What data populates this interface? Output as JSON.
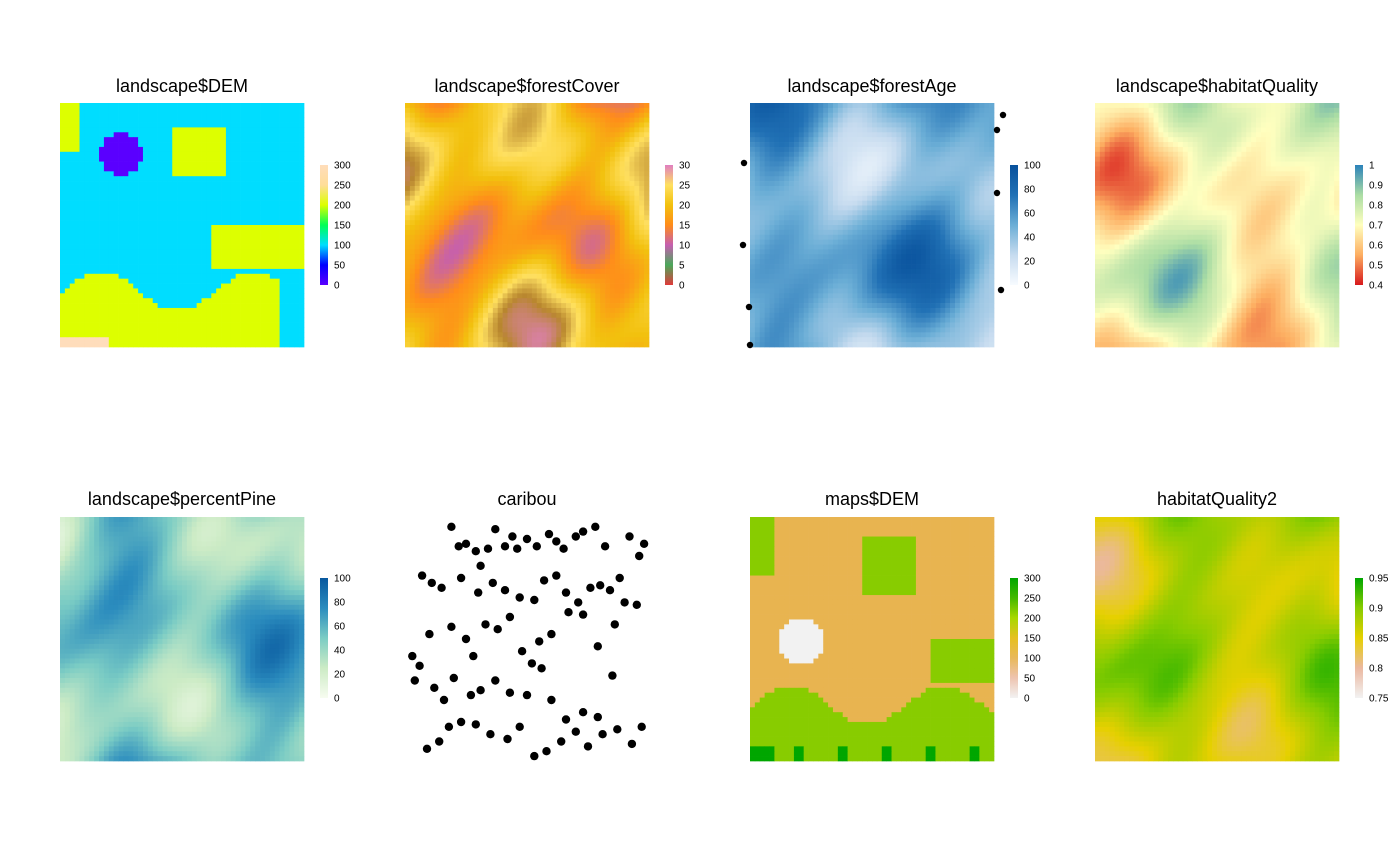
{
  "chart_data": [
    {
      "type": "heatmap",
      "title": "landscape$DEM",
      "legend": {
        "ticks": [
          0,
          50,
          100,
          150,
          200,
          250,
          300
        ],
        "colors": [
          "#5a00ff",
          "#0000ff",
          "#00ddff",
          "#00ff55",
          "#ddff00",
          "#ffdd99",
          "#ffddbb"
        ]
      },
      "palette_kind": "dem"
    },
    {
      "type": "heatmap",
      "title": "landscape$forestCover",
      "legend": {
        "ticks": [
          0,
          5,
          10,
          15,
          20,
          25,
          30
        ],
        "colors": [
          "#e03a3a",
          "#4aa85a",
          "#c55fb0",
          "#ff8c1a",
          "#f2c10e",
          "#ffe060",
          "#e07fc0"
        ]
      },
      "palette_kind": "forestcover"
    },
    {
      "type": "heatmap",
      "title": "landscape$forestAge",
      "legend": {
        "ticks": [
          0,
          20,
          40,
          60,
          80,
          100
        ],
        "colors": [
          "#f7fbff",
          "#c6dbef",
          "#6baed6",
          "#2171b5",
          "#08519c"
        ]
      },
      "palette_kind": "blues"
    },
    {
      "type": "heatmap",
      "title": "landscape$habitatQuality",
      "legend": {
        "ticks": [
          "0.4",
          "0.5",
          "0.6",
          "0.7",
          "0.8",
          "0.9",
          "1"
        ],
        "colors": [
          "#d7191c",
          "#fdae61",
          "#ffffbf",
          "#abdda4",
          "#2b83ba"
        ]
      },
      "palette_kind": "spectral"
    },
    {
      "type": "heatmap",
      "title": "landscape$percentPine",
      "legend": {
        "ticks": [
          0,
          20,
          40,
          60,
          80,
          100
        ],
        "colors": [
          "#f7fcf0",
          "#ccebc5",
          "#7bccc4",
          "#2b8cbe",
          "#08589e"
        ]
      },
      "palette_kind": "gnbu"
    },
    {
      "type": "scatter",
      "title": "caribou",
      "points": [
        [
          0.19,
          0.96
        ],
        [
          0.22,
          0.88
        ],
        [
          0.25,
          0.89
        ],
        [
          0.29,
          0.86
        ],
        [
          0.31,
          0.8
        ],
        [
          0.34,
          0.87
        ],
        [
          0.37,
          0.95
        ],
        [
          0.41,
          0.88
        ],
        [
          0.44,
          0.92
        ],
        [
          0.46,
          0.87
        ],
        [
          0.5,
          0.91
        ],
        [
          0.54,
          0.88
        ],
        [
          0.59,
          0.93
        ],
        [
          0.62,
          0.9
        ],
        [
          0.65,
          0.87
        ],
        [
          0.7,
          0.92
        ],
        [
          0.73,
          0.94
        ],
        [
          0.78,
          0.96
        ],
        [
          0.82,
          0.88
        ],
        [
          0.07,
          0.76
        ],
        [
          0.11,
          0.73
        ],
        [
          0.15,
          0.71
        ],
        [
          0.23,
          0.75
        ],
        [
          0.3,
          0.69
        ],
        [
          0.36,
          0.73
        ],
        [
          0.41,
          0.7
        ],
        [
          0.47,
          0.67
        ],
        [
          0.53,
          0.66
        ],
        [
          0.57,
          0.74
        ],
        [
          0.62,
          0.76
        ],
        [
          0.66,
          0.69
        ],
        [
          0.71,
          0.65
        ],
        [
          0.76,
          0.71
        ],
        [
          0.8,
          0.72
        ],
        [
          0.84,
          0.7
        ],
        [
          0.88,
          0.75
        ],
        [
          0.92,
          0.92
        ],
        [
          0.96,
          0.84
        ],
        [
          0.98,
          0.89
        ],
        [
          0.1,
          0.52
        ],
        [
          0.19,
          0.55
        ],
        [
          0.25,
          0.5
        ],
        [
          0.28,
          0.43
        ],
        [
          0.33,
          0.56
        ],
        [
          0.38,
          0.54
        ],
        [
          0.43,
          0.59
        ],
        [
          0.48,
          0.45
        ],
        [
          0.52,
          0.4
        ],
        [
          0.55,
          0.49
        ],
        [
          0.6,
          0.52
        ],
        [
          0.67,
          0.61
        ],
        [
          0.73,
          0.6
        ],
        [
          0.79,
          0.47
        ],
        [
          0.86,
          0.56
        ],
        [
          0.9,
          0.65
        ],
        [
          0.95,
          0.64
        ],
        [
          0.03,
          0.43
        ],
        [
          0.06,
          0.39
        ],
        [
          0.12,
          0.3
        ],
        [
          0.16,
          0.25
        ],
        [
          0.2,
          0.34
        ],
        [
          0.27,
          0.27
        ],
        [
          0.31,
          0.29
        ],
        [
          0.37,
          0.33
        ],
        [
          0.43,
          0.28
        ],
        [
          0.5,
          0.27
        ],
        [
          0.56,
          0.38
        ],
        [
          0.6,
          0.25
        ],
        [
          0.66,
          0.17
        ],
        [
          0.73,
          0.2
        ],
        [
          0.79,
          0.18
        ],
        [
          0.85,
          0.35
        ],
        [
          0.09,
          0.05
        ],
        [
          0.14,
          0.08
        ],
        [
          0.18,
          0.14
        ],
        [
          0.23,
          0.16
        ],
        [
          0.29,
          0.15
        ],
        [
          0.35,
          0.11
        ],
        [
          0.42,
          0.09
        ],
        [
          0.47,
          0.14
        ],
        [
          0.53,
          0.02
        ],
        [
          0.58,
          0.04
        ],
        [
          0.64,
          0.08
        ],
        [
          0.7,
          0.12
        ],
        [
          0.75,
          0.06
        ],
        [
          0.81,
          0.11
        ],
        [
          0.87,
          0.13
        ],
        [
          0.93,
          0.07
        ],
        [
          0.97,
          0.14
        ],
        [
          0.04,
          0.33
        ]
      ]
    },
    {
      "type": "heatmap",
      "title": "maps$DEM",
      "legend": {
        "ticks": [
          0,
          50,
          100,
          150,
          200,
          250,
          300
        ],
        "colors": [
          "#f2f2f2",
          "#eec4b0",
          "#e8b85a",
          "#e6c020",
          "#a8d800",
          "#44b800",
          "#00a600"
        ]
      },
      "palette_kind": "terrain"
    },
    {
      "type": "heatmap",
      "title": "habitatQuality2",
      "legend": {
        "ticks": [
          "0.75",
          "0.8",
          "0.85",
          "0.9",
          "0.95"
        ],
        "colors": [
          "#f2f2f2",
          "#ebb8a0",
          "#e6d000",
          "#88cc00",
          "#00a600"
        ]
      },
      "palette_kind": "terrain2"
    }
  ]
}
